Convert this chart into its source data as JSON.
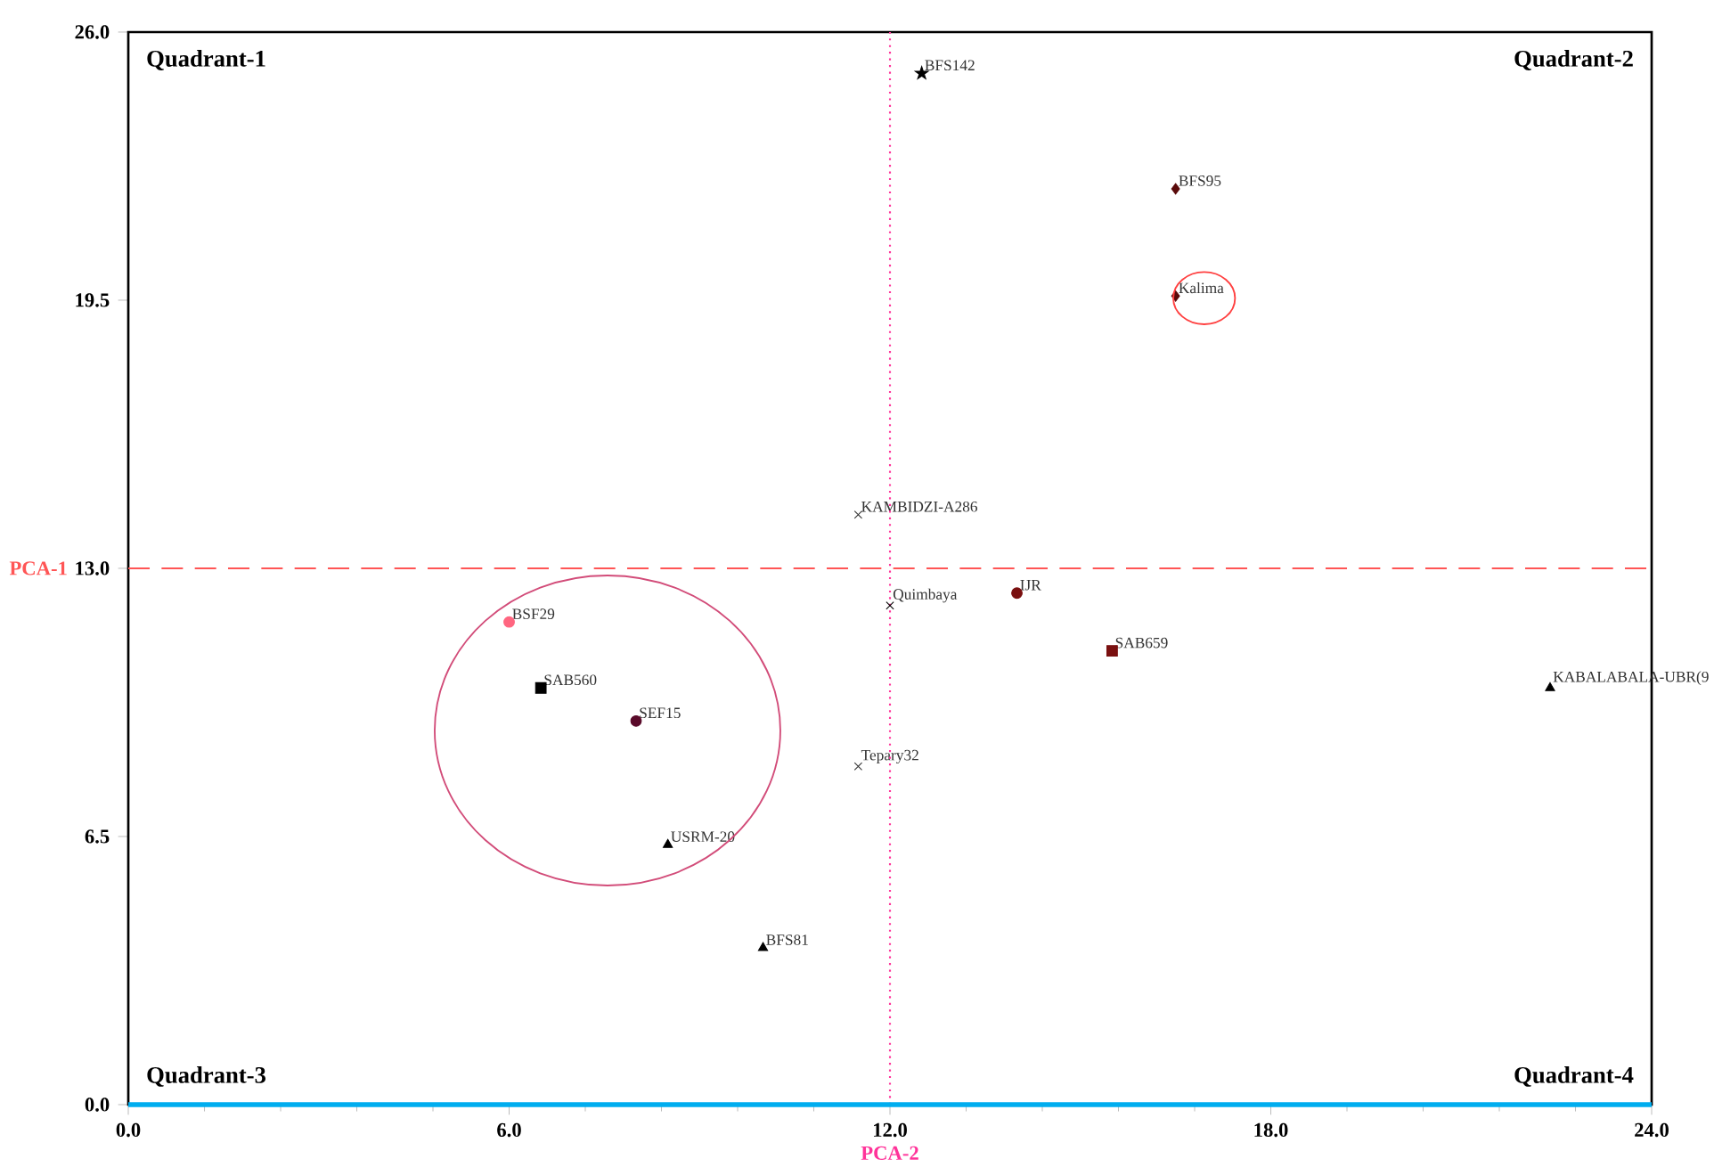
{
  "chart_data": {
    "type": "scatter",
    "xlim": [
      0,
      24
    ],
    "ylim": [
      0,
      26
    ],
    "xticks": [
      {
        "value": 0,
        "label": "0.0"
      },
      {
        "value": 6,
        "label": "6.0"
      },
      {
        "value": 12,
        "label": "12.0"
      },
      {
        "value": 18,
        "label": "18.0"
      },
      {
        "value": 24,
        "label": "24.0"
      }
    ],
    "yticks": [
      {
        "value": 0,
        "label": "0.0"
      },
      {
        "value": 6.5,
        "label": "6.5"
      },
      {
        "value": 13,
        "label": "13.0"
      },
      {
        "value": 19.5,
        "label": "19.5"
      },
      {
        "value": 26,
        "label": "26.0"
      }
    ],
    "ref_lines": [
      {
        "axis": "y",
        "value": 13,
        "label": "PCA-1",
        "color": "#ff5555",
        "line_style": "dashed"
      },
      {
        "axis": "x",
        "value": 12,
        "label": "PCA-2",
        "color": "#ff3399",
        "line_style": "dotted"
      }
    ],
    "annotations": [
      "Quadrant-1",
      "Quadrant-2",
      "Quadrant-3",
      "Quadrant-4"
    ],
    "series": [
      {
        "name": "BFS142",
        "x": [
          12.5
        ],
        "values": [
          25.0
        ],
        "color": "#000000",
        "marker": "star"
      },
      {
        "name": "BFS95",
        "x": [
          16.5
        ],
        "values": [
          22.2
        ],
        "color": "#5a0a0a",
        "marker": "diamond"
      },
      {
        "name": "Kalima",
        "x": [
          16.5
        ],
        "values": [
          19.6
        ],
        "color": "#5a0a0a",
        "marker": "diamond"
      },
      {
        "name": "KAMBIDZI-A286",
        "x": [
          11.5
        ],
        "values": [
          14.3
        ],
        "color": "#333333",
        "marker": "cross"
      },
      {
        "name": "Quimbaya",
        "x": [
          12.0
        ],
        "values": [
          12.1
        ],
        "color": "#000000",
        "marker": "cross"
      },
      {
        "name": "IJR",
        "x": [
          14.0
        ],
        "values": [
          12.4
        ],
        "color": "#7a1010",
        "marker": "circle"
      },
      {
        "name": "SAB659",
        "x": [
          15.5
        ],
        "values": [
          11.0
        ],
        "color": "#7a1010",
        "marker": "square"
      },
      {
        "name": "KABALABALA-UBR(9",
        "x": [
          22.4
        ],
        "values": [
          10.1
        ],
        "color": "#000000",
        "marker": "triangle"
      },
      {
        "name": "BSF29",
        "x": [
          6.0
        ],
        "values": [
          11.7
        ],
        "color": "#ff6680",
        "marker": "circle"
      },
      {
        "name": "SAB560",
        "x": [
          6.5
        ],
        "values": [
          10.1
        ],
        "color": "#000000",
        "marker": "square"
      },
      {
        "name": "SEF15",
        "x": [
          8.0
        ],
        "values": [
          9.3
        ],
        "color": "#5a0a2a",
        "marker": "circle"
      },
      {
        "name": "Tepary32",
        "x": [
          11.5
        ],
        "values": [
          8.2
        ],
        "color": "#333333",
        "marker": "cross"
      },
      {
        "name": "USRM-20",
        "x": [
          8.5
        ],
        "values": [
          6.3
        ],
        "color": "#000000",
        "marker": "triangle"
      },
      {
        "name": "BFS81",
        "x": [
          10.0
        ],
        "values": [
          3.8
        ],
        "color": "#000000",
        "marker": "triangle"
      }
    ]
  }
}
